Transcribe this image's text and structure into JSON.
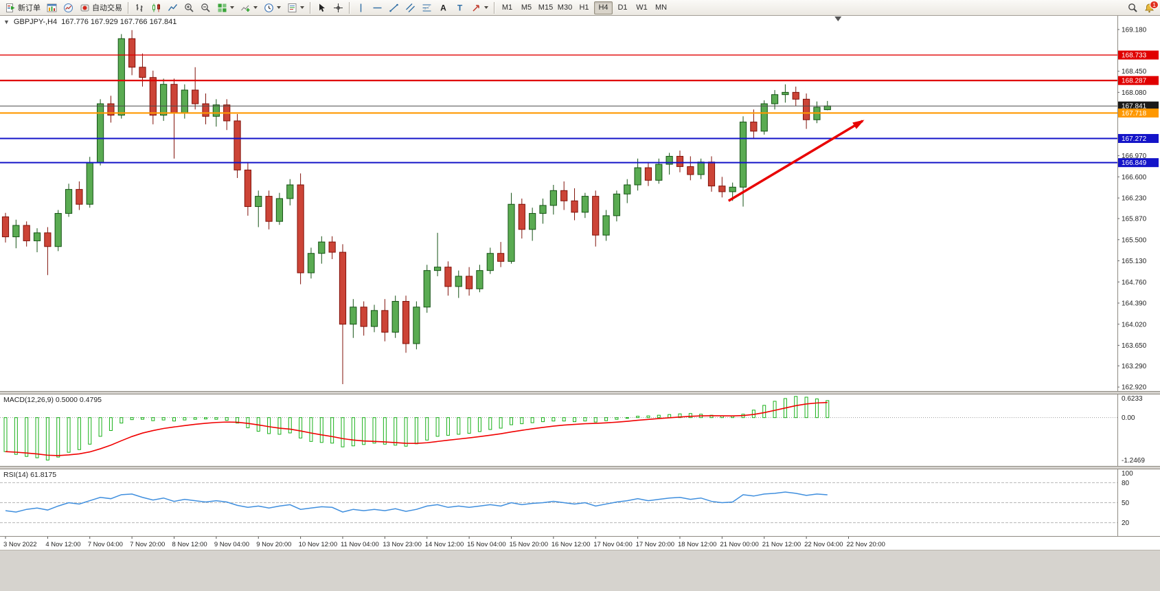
{
  "toolbar": {
    "new_order_label": "新订单",
    "auto_trading_label": "自动交易",
    "timeframes": [
      "M1",
      "M5",
      "M15",
      "M30",
      "H1",
      "H4",
      "D1",
      "W1",
      "MN"
    ],
    "active_timeframe": "H4",
    "notification_badge": "1",
    "icons": {
      "new_order": "document-with-green-arrow",
      "chart_window": "mini-bar-chart-window",
      "market_watch": "quotes-circle",
      "auto_trading": "red-dot-robot",
      "bar_chart": "ohlc-bars",
      "candlestick_chart": "candles",
      "line_chart": "polyline",
      "zoom_in": "magnifier-plus",
      "zoom_out": "magnifier-minus",
      "tile_windows": "green-grid",
      "indicators": "chart-plus",
      "periods": "clock",
      "templates": "template-sheet",
      "cursor": "arrow-pointer",
      "crosshair": "crosshair",
      "vertical_line": "vline",
      "horizontal_line": "hline",
      "trendline": "diagonal-line",
      "channel": "parallel-lines",
      "fibonacci": "fibo-levels",
      "text": "letter-A",
      "text_label": "letter-T",
      "arrows_tool": "red-arrow",
      "search": "magnifier",
      "notifications": "bell-with-badge"
    }
  },
  "chart_header": {
    "collapse_arrow": "▼",
    "symbol": "GBPJPY-,H4",
    "ohlc": "167.776 167.929 167.766 167.841"
  },
  "indicator_labels": {
    "macd": "MACD(12,26,9) 0.5000 0.4795",
    "rsi": "RSI(14) 61.8175"
  },
  "chart_data": [
    {
      "type": "candlestick",
      "title": "GBPJPY- H4",
      "y_min": 162.85,
      "y_max": 169.42,
      "span_frac": 0.745,
      "shift_marker_frac": 0.75,
      "up_color": "#5aab52",
      "up_border": "#145214",
      "down_color": "#cc4437",
      "down_border": "#801008",
      "y_ticks": [
        169.18,
        168.45,
        168.08,
        166.97,
        166.6,
        166.23,
        165.87,
        165.5,
        165.13,
        164.76,
        164.39,
        164.02,
        163.65,
        163.29,
        162.92
      ],
      "price_tags": [
        {
          "label": "168.733",
          "price": 168.733,
          "color": "#e00000"
        },
        {
          "label": "168.287",
          "price": 168.287,
          "color": "#e00000"
        },
        {
          "label": "167.841",
          "price": 167.841,
          "color": "#1a1a1a"
        },
        {
          "label": "167.718",
          "price": 167.718,
          "color": "#ff9800"
        },
        {
          "label": "167.272",
          "price": 167.272,
          "color": "#1414c8"
        },
        {
          "label": "166.849",
          "price": 166.849,
          "color": "#1414c8"
        }
      ],
      "h_lines": [
        {
          "price": 168.733,
          "color": "#e00000",
          "width": 1.4
        },
        {
          "price": 168.287,
          "color": "#e00000",
          "width": 2.2
        },
        {
          "price": 167.841,
          "color": "#4a4a4a",
          "width": 1
        },
        {
          "price": 167.718,
          "color": "#ff9800",
          "width": 2.2
        },
        {
          "price": 167.272,
          "color": "#1414c8",
          "width": 2
        },
        {
          "price": 166.849,
          "color": "#1414c8",
          "width": 2
        }
      ],
      "arrow": {
        "x1": 0.652,
        "p1": 166.18,
        "x2": 0.772,
        "p2": 167.58,
        "color": "#e80000"
      },
      "ohlc": [
        [
          165.9,
          165.97,
          165.45,
          165.55
        ],
        [
          165.55,
          165.85,
          165.35,
          165.75
        ],
        [
          165.75,
          165.82,
          165.38,
          165.48
        ],
        [
          165.48,
          165.7,
          165.28,
          165.62
        ],
        [
          165.62,
          165.72,
          164.88,
          165.38
        ],
        [
          165.38,
          166.02,
          165.3,
          165.96
        ],
        [
          165.96,
          166.48,
          165.9,
          166.38
        ],
        [
          166.38,
          166.52,
          166.02,
          166.12
        ],
        [
          166.12,
          166.95,
          166.06,
          166.85
        ],
        [
          166.85,
          167.96,
          166.8,
          167.88
        ],
        [
          167.88,
          168.02,
          167.55,
          167.68
        ],
        [
          167.68,
          169.1,
          167.62,
          169.02
        ],
        [
          169.02,
          169.17,
          168.38,
          168.52
        ],
        [
          168.52,
          168.76,
          168.18,
          168.34
        ],
        [
          168.34,
          168.46,
          167.52,
          167.68
        ],
        [
          167.68,
          168.32,
          167.58,
          168.22
        ],
        [
          168.22,
          168.32,
          166.92,
          167.72
        ],
        [
          167.72,
          168.22,
          167.62,
          168.12
        ],
        [
          168.12,
          168.52,
          167.78,
          167.88
        ],
        [
          167.88,
          168.06,
          167.52,
          167.66
        ],
        [
          167.66,
          167.96,
          167.48,
          167.86
        ],
        [
          167.86,
          167.96,
          167.42,
          167.58
        ],
        [
          167.58,
          167.7,
          166.58,
          166.72
        ],
        [
          166.72,
          166.86,
          165.92,
          166.08
        ],
        [
          166.08,
          166.36,
          165.72,
          166.26
        ],
        [
          166.26,
          166.36,
          165.68,
          165.82
        ],
        [
          165.82,
          166.32,
          165.76,
          166.22
        ],
        [
          166.22,
          166.56,
          166.1,
          166.46
        ],
        [
          166.46,
          166.66,
          164.72,
          164.92
        ],
        [
          164.92,
          165.36,
          164.82,
          165.26
        ],
        [
          165.26,
          165.56,
          165.08,
          165.46
        ],
        [
          165.46,
          165.56,
          165.16,
          165.28
        ],
        [
          165.28,
          165.42,
          162.97,
          164.02
        ],
        [
          164.02,
          164.46,
          163.78,
          164.32
        ],
        [
          164.32,
          164.42,
          163.82,
          163.98
        ],
        [
          163.98,
          164.36,
          163.88,
          164.26
        ],
        [
          164.26,
          164.46,
          163.72,
          163.88
        ],
        [
          163.88,
          164.52,
          163.78,
          164.42
        ],
        [
          164.42,
          164.52,
          163.52,
          163.68
        ],
        [
          163.68,
          164.42,
          163.58,
          164.32
        ],
        [
          164.32,
          165.06,
          164.22,
          164.96
        ],
        [
          164.96,
          165.62,
          164.86,
          165.02
        ],
        [
          165.02,
          165.12,
          164.52,
          164.68
        ],
        [
          164.68,
          164.96,
          164.48,
          164.86
        ],
        [
          164.86,
          165.02,
          164.52,
          164.64
        ],
        [
          164.64,
          165.06,
          164.58,
          164.96
        ],
        [
          164.96,
          165.36,
          164.9,
          165.26
        ],
        [
          165.26,
          165.46,
          165.02,
          165.12
        ],
        [
          165.12,
          166.32,
          165.08,
          166.12
        ],
        [
          166.12,
          166.22,
          165.52,
          165.68
        ],
        [
          165.68,
          166.06,
          165.48,
          165.96
        ],
        [
          165.96,
          166.22,
          165.78,
          166.1
        ],
        [
          166.1,
          166.46,
          165.94,
          166.36
        ],
        [
          166.36,
          166.52,
          166.02,
          166.18
        ],
        [
          166.18,
          166.4,
          165.84,
          165.98
        ],
        [
          165.98,
          166.32,
          165.88,
          166.26
        ],
        [
          166.26,
          166.36,
          165.38,
          165.58
        ],
        [
          165.58,
          166.02,
          165.48,
          165.92
        ],
        [
          165.92,
          166.36,
          165.82,
          166.3
        ],
        [
          166.3,
          166.56,
          166.14,
          166.46
        ],
        [
          166.46,
          166.92,
          166.36,
          166.76
        ],
        [
          166.76,
          166.86,
          166.44,
          166.54
        ],
        [
          166.54,
          166.92,
          166.48,
          166.82
        ],
        [
          166.82,
          167.02,
          166.64,
          166.96
        ],
        [
          166.96,
          167.06,
          166.68,
          166.78
        ],
        [
          166.78,
          166.96,
          166.54,
          166.64
        ],
        [
          166.64,
          166.92,
          166.56,
          166.86
        ],
        [
          166.86,
          166.96,
          166.34,
          166.44
        ],
        [
          166.44,
          166.6,
          166.24,
          166.34
        ],
        [
          166.34,
          166.5,
          166.18,
          166.42
        ],
        [
          166.42,
          167.66,
          166.08,
          167.56
        ],
        [
          167.56,
          167.78,
          167.28,
          167.4
        ],
        [
          167.4,
          167.94,
          167.34,
          167.88
        ],
        [
          167.88,
          168.12,
          167.78,
          168.04
        ],
        [
          168.04,
          168.22,
          167.9,
          168.08
        ],
        [
          168.08,
          168.18,
          167.84,
          167.96
        ],
        [
          167.96,
          168.06,
          167.44,
          167.6
        ],
        [
          167.6,
          167.92,
          167.54,
          167.82
        ],
        [
          167.776,
          167.929,
          167.766,
          167.841
        ]
      ]
    },
    {
      "type": "bar",
      "title": "MACD(12,26,9)",
      "current_macd": 0.5,
      "current_signal": 0.4795,
      "y_max": 0.68,
      "y_min": -1.42,
      "signal_period": 9,
      "histogram_color": "#18b018",
      "signal_color": "#f00000",
      "axis_labels": [
        {
          "text": "0.6233",
          "value": 0.6233
        },
        {
          "text": "0.00",
          "value": 0
        },
        {
          "text": "-1.2469",
          "value": -1.2469
        }
      ],
      "values": [
        -1.0,
        -1.08,
        -1.14,
        -1.18,
        -1.2469,
        -1.16,
        -1.02,
        -0.94,
        -0.78,
        -0.55,
        -0.38,
        -0.16,
        -0.06,
        -0.05,
        -0.09,
        -0.07,
        -0.1,
        -0.07,
        -0.05,
        -0.04,
        -0.05,
        -0.08,
        -0.16,
        -0.3,
        -0.4,
        -0.47,
        -0.49,
        -0.45,
        -0.6,
        -0.7,
        -0.73,
        -0.75,
        -0.86,
        -0.83,
        -0.79,
        -0.75,
        -0.78,
        -0.81,
        -0.84,
        -0.77,
        -0.66,
        -0.55,
        -0.52,
        -0.49,
        -0.46,
        -0.41,
        -0.35,
        -0.31,
        -0.21,
        -0.18,
        -0.15,
        -0.12,
        -0.1,
        -0.1,
        -0.12,
        -0.1,
        -0.13,
        -0.09,
        -0.05,
        -0.01,
        0.04,
        0.05,
        0.07,
        0.09,
        0.11,
        0.12,
        0.1,
        0.07,
        0.05,
        0.04,
        0.1,
        0.22,
        0.36,
        0.48,
        0.56,
        0.6233,
        0.6,
        0.55,
        0.5
      ]
    },
    {
      "type": "line",
      "title": "RSI(14)",
      "current_value": 61.8175,
      "y_min": 0,
      "y_max": 100,
      "levels": [
        80,
        50,
        20
      ],
      "axis_labels": [
        100,
        80,
        50,
        20
      ],
      "line_color": "#3e8ede",
      "values": [
        38,
        36,
        40,
        42,
        39,
        45,
        50,
        48,
        53,
        58,
        56,
        62,
        63,
        58,
        54,
        57,
        52,
        55,
        53,
        51,
        53,
        51,
        46,
        43,
        45,
        42,
        45,
        47,
        40,
        42,
        44,
        43,
        36,
        40,
        38,
        40,
        38,
        41,
        37,
        40,
        45,
        47,
        43,
        45,
        43,
        45,
        47,
        45,
        50,
        47,
        49,
        50,
        52,
        50,
        48,
        50,
        45,
        48,
        51,
        53,
        56,
        53,
        55,
        57,
        58,
        55,
        57,
        52,
        50,
        51,
        62,
        60,
        63,
        64,
        66,
        64,
        61,
        63,
        61.8
      ]
    }
  ],
  "time_axis": {
    "candles_per_label": 4,
    "labels": [
      "3 Nov 2022",
      "4 Nov 12:00",
      "7 Nov 04:00",
      "7 Nov 20:00",
      "8 Nov 12:00",
      "9 Nov 04:00",
      "9 Nov 20:00",
      "10 Nov 12:00",
      "11 Nov 04:00",
      "13 Nov 23:00",
      "14 Nov 12:00",
      "15 Nov 04:00",
      "15 Nov 20:00",
      "16 Nov 12:00",
      "17 Nov 04:00",
      "17 Nov 20:00",
      "18 Nov 12:00",
      "21 Nov 00:00",
      "21 Nov 12:00",
      "22 Nov 04:00",
      "22 Nov 20:00"
    ]
  }
}
